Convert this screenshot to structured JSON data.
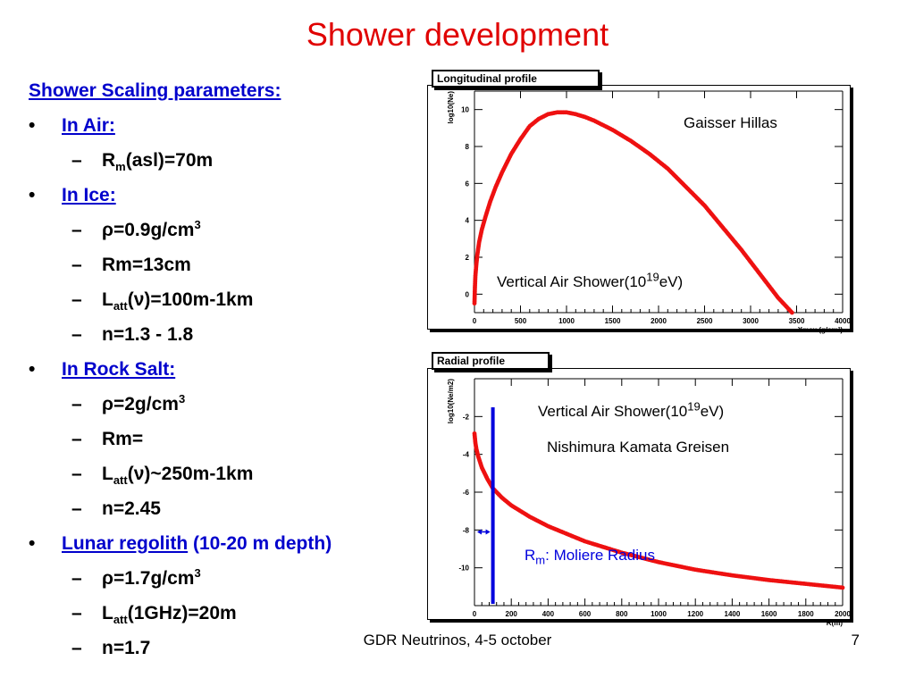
{
  "slide": {
    "title": "Shower development",
    "footer": "GDR Neutrinos, 4-5 october",
    "page_number": "7"
  },
  "bullets": {
    "heading": "Shower Scaling parameters:",
    "air": {
      "label": "In Air:",
      "items": [
        {
          "pre": "R",
          "sub": "m",
          "post": "(asl)=70m"
        }
      ]
    },
    "ice": {
      "label": "In Ice:",
      "items": [
        {
          "pre": "ρ=0.9g/cm",
          "sup": "3",
          "post": ""
        },
        {
          "pre": "Rm=13cm",
          "post": ""
        },
        {
          "pre": "L",
          "sub": "att",
          "post": "(ν)=100m-1km"
        },
        {
          "pre": "n=1.3 - 1.8",
          "post": ""
        }
      ]
    },
    "rock_salt": {
      "label": "In Rock Salt:",
      "items": [
        {
          "pre": "ρ=2g/cm",
          "sup": "3",
          "post": ""
        },
        {
          "pre": "Rm=",
          "post": ""
        },
        {
          "pre": "L",
          "sub": "att",
          "post": "(ν)~250m-1km"
        },
        {
          "pre": "n=2.45",
          "post": ""
        }
      ]
    },
    "lunar": {
      "label": "Lunar regolith",
      "label_suffix": " (10-20 m depth)",
      "items": [
        {
          "pre": "ρ=1.7g/cm",
          "sup": "3",
          "post": ""
        },
        {
          "pre": "L",
          "sub": "att",
          "post": "(1GHz)=20m"
        },
        {
          "pre": "n=1.7",
          "post": ""
        }
      ]
    }
  },
  "colors": {
    "title": "#e00000",
    "link": "#0000cc",
    "curve": "#ee1111",
    "marker": "#0000dd"
  },
  "chart_data": [
    {
      "type": "scatter",
      "title": "Longitudinal profile",
      "xlabel": "Xmax (g/cm²)",
      "ylabel": "log10(Ne)",
      "xlim": [
        0,
        4000
      ],
      "ylim": [
        -1,
        11
      ],
      "xticks": [
        "0",
        "500",
        "1000",
        "1500",
        "2000",
        "2500",
        "3000",
        "3500",
        "4000"
      ],
      "yticks": [
        "0",
        "2",
        "4",
        "6",
        "8",
        "10"
      ],
      "annotations": {
        "model": "Gaisser Hillas",
        "shower_pre": "Vertical Air Shower(10",
        "shower_sup": "19",
        "shower_post": "eV)"
      },
      "series": [
        {
          "x": [
            0,
            5,
            10,
            20,
            30,
            50,
            80,
            120,
            170,
            230,
            300,
            400,
            500,
            600,
            700,
            800,
            900,
            1000,
            1100,
            1200,
            1300,
            1500,
            1700,
            1900,
            2100,
            2300,
            2500,
            2700,
            2900,
            3100,
            3300,
            3450
          ],
          "y": [
            -0.5,
            0.4,
            1.0,
            1.6,
            2.1,
            2.8,
            3.5,
            4.2,
            5.0,
            5.8,
            6.6,
            7.6,
            8.4,
            9.1,
            9.5,
            9.75,
            9.85,
            9.85,
            9.75,
            9.6,
            9.4,
            8.9,
            8.3,
            7.6,
            6.8,
            5.8,
            4.8,
            3.6,
            2.4,
            1.1,
            -0.2,
            -1.0
          ]
        }
      ]
    },
    {
      "type": "scatter",
      "title": "Radial  profile",
      "xlabel": "R(m)",
      "ylabel": "log10(Ne/m2)",
      "xlim": [
        0,
        2000
      ],
      "ylim": [
        -12,
        0
      ],
      "xticks": [
        "0",
        "200",
        "400",
        "600",
        "800",
        "1000",
        "1200",
        "1400",
        "1600",
        "1800",
        "2000"
      ],
      "yticks": [
        "-2",
        "-4",
        "-6",
        "-8",
        "-10"
      ],
      "annotations": {
        "shower_pre": "Vertical Air Shower(10",
        "shower_sup": "19",
        "shower_post": "eV)",
        "model": "Nishimura Kamata  Greisen",
        "radius_pre": "R",
        "radius_sub": "m",
        "radius_post": ": Moliere Radius"
      },
      "moliere_radius_x": 100,
      "series": [
        {
          "x": [
            0,
            5,
            10,
            20,
            40,
            70,
            100,
            150,
            200,
            300,
            400,
            500,
            600,
            800,
            1000,
            1200,
            1400,
            1600,
            1800,
            2000
          ],
          "y": [
            -2.9,
            -3.4,
            -3.7,
            -4.1,
            -4.7,
            -5.3,
            -5.8,
            -6.3,
            -6.7,
            -7.3,
            -7.8,
            -8.2,
            -8.6,
            -9.2,
            -9.7,
            -10.1,
            -10.4,
            -10.65,
            -10.85,
            -11.05
          ]
        }
      ]
    }
  ]
}
